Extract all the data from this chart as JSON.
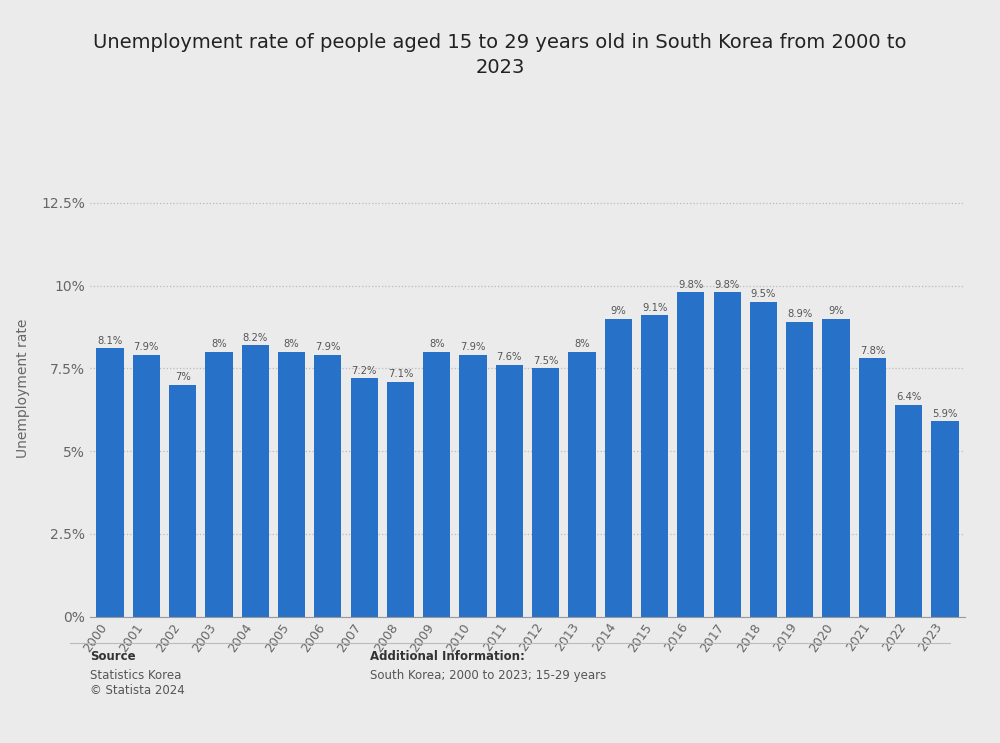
{
  "title": "Unemployment rate of people aged 15 to 29 years old in South Korea from 2000 to\n2023",
  "years": [
    2000,
    2001,
    2002,
    2003,
    2004,
    2005,
    2006,
    2007,
    2008,
    2009,
    2010,
    2011,
    2012,
    2013,
    2014,
    2015,
    2016,
    2017,
    2018,
    2019,
    2020,
    2021,
    2022,
    2023
  ],
  "values": [
    8.1,
    7.9,
    7.0,
    8.0,
    8.2,
    8.0,
    7.9,
    7.2,
    7.1,
    8.0,
    7.9,
    7.6,
    7.5,
    8.0,
    9.0,
    9.1,
    9.8,
    9.8,
    9.5,
    8.9,
    9.0,
    7.8,
    6.4,
    5.9
  ],
  "labels": [
    "8.1%",
    "7.9%",
    "7%",
    "8%",
    "8.2%",
    "8%",
    "7.9%",
    "7.2%",
    "7.1%",
    "8%",
    "7.9%",
    "7.6%",
    "7.5%",
    "8%",
    "9%",
    "9.1%",
    "9.8%",
    "9.8%",
    "9.5%",
    "8.9%",
    "9%",
    "7.8%",
    "6.4%",
    "5.9%"
  ],
  "bar_color": "#2771c8",
  "ylabel": "Unemployment rate",
  "yticks": [
    0,
    2.5,
    5.0,
    7.5,
    10.0,
    12.5
  ],
  "ytick_labels": [
    "0%",
    "2.5%",
    "5%",
    "7.5%",
    "10%",
    "12.5%"
  ],
  "ylim": [
    0,
    13.8
  ],
  "background_color": "#ebebeb",
  "plot_background": "#ebebeb",
  "title_fontsize": 14,
  "source_label": "Source",
  "source_body": "Statistics Korea\n© Statista 2024",
  "additional_label": "Additional Information:",
  "additional_body": "South Korea; 2000 to 2023; 15-29 years"
}
